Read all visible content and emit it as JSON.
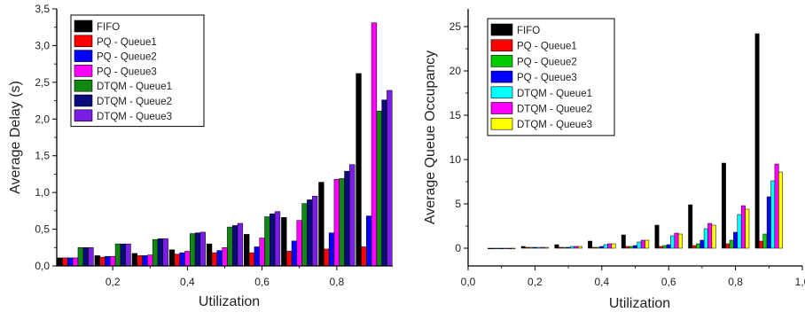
{
  "colors": {
    "black": "#000000",
    "red": "#ff0000",
    "green": "#00cc00",
    "blue": "#0000ff",
    "magenta": "#ff00ff",
    "cyan": "#00ffff",
    "yellow": "#ffff00",
    "dark_green": "#118811",
    "navy": "#0a0a7a",
    "violet": "#7a1ee6"
  },
  "chart_data": [
    {
      "type": "bar",
      "xlabel": "Utilization",
      "ylabel": "Average Delay (s)",
      "xlim": [
        0.05,
        0.95
      ],
      "ylim": [
        0,
        3.5
      ],
      "xticks": [
        0.2,
        0.4,
        0.6,
        0.8
      ],
      "xtick_labels": [
        "0,2",
        "0,4",
        "0,6",
        "0,8"
      ],
      "yticks": [
        0,
        0.5,
        1.0,
        1.5,
        2.0,
        2.5,
        3.0,
        3.5
      ],
      "ytick_labels": [
        "0,0",
        "0,5",
        "1,0",
        "1,5",
        "2,0",
        "2,5",
        "3,0",
        "3,5"
      ],
      "legend_position": "top-left",
      "x": [
        0.1,
        0.2,
        0.3,
        0.4,
        0.5,
        0.6,
        0.7,
        0.8,
        0.9
      ],
      "series": [
        {
          "name": "FIFO",
          "color": "#000000",
          "values": [
            0.11,
            0.14,
            0.17,
            0.22,
            0.3,
            0.43,
            0.66,
            1.14,
            2.62
          ]
        },
        {
          "name": "PQ - Queue1",
          "color": "#ff0000",
          "values": [
            0.11,
            0.12,
            0.14,
            0.16,
            0.18,
            0.18,
            0.2,
            0.23,
            0.26
          ]
        },
        {
          "name": "PQ - Queue2",
          "color": "#0000ff",
          "values": [
            0.11,
            0.13,
            0.14,
            0.18,
            0.21,
            0.26,
            0.34,
            0.45,
            0.68
          ]
        },
        {
          "name": "PQ - Queue3",
          "color": "#ff00ff",
          "values": [
            0.11,
            0.13,
            0.15,
            0.2,
            0.25,
            0.38,
            0.62,
            1.18,
            3.31
          ]
        },
        {
          "name": "DTQM - Queue1",
          "color": "#118811",
          "values": [
            0.25,
            0.3,
            0.36,
            0.44,
            0.53,
            0.67,
            0.85,
            1.19,
            2.11
          ]
        },
        {
          "name": "DTQM - Queue2",
          "color": "#0a0a7a",
          "values": [
            0.25,
            0.3,
            0.37,
            0.45,
            0.55,
            0.71,
            0.9,
            1.29,
            2.26
          ]
        },
        {
          "name": "DTQM - Queue3",
          "color": "#7a1ee6",
          "values": [
            0.25,
            0.3,
            0.37,
            0.46,
            0.58,
            0.74,
            0.95,
            1.38,
            2.39
          ]
        }
      ]
    },
    {
      "type": "bar",
      "xlabel": "Utilization",
      "ylabel": "Average Queue Occupancy",
      "xlim": [
        0.0,
        1.0
      ],
      "ylim": [
        -2,
        27
      ],
      "xticks": [
        0.0,
        0.2,
        0.4,
        0.6,
        0.8,
        1.0
      ],
      "xtick_labels": [
        "0,0",
        "0,2",
        "0,4",
        "0,6",
        "0,8",
        "1,0"
      ],
      "yticks": [
        0,
        5,
        10,
        15,
        20,
        25
      ],
      "ytick_labels": [
        "0",
        "5",
        "10",
        "15",
        "20",
        "25"
      ],
      "legend_position": "top-left",
      "x": [
        0.1,
        0.2,
        0.3,
        0.4,
        0.5,
        0.6,
        0.7,
        0.8,
        0.9
      ],
      "series": [
        {
          "name": "FIFO",
          "color": "#000000",
          "values": [
            0.0,
            0.2,
            0.4,
            0.8,
            1.5,
            2.6,
            4.9,
            9.6,
            24.2
          ]
        },
        {
          "name": "PQ - Queue1",
          "color": "#ff0000",
          "values": [
            0.0,
            0.1,
            0.1,
            0.1,
            0.2,
            0.2,
            0.3,
            0.5,
            0.8
          ]
        },
        {
          "name": "PQ - Queue2",
          "color": "#00cc00",
          "values": [
            0.0,
            0.1,
            0.1,
            0.1,
            0.2,
            0.3,
            0.5,
            0.9,
            1.6
          ]
        },
        {
          "name": "PQ - Queue3",
          "color": "#0000ff",
          "values": [
            0.0,
            0.1,
            0.1,
            0.2,
            0.3,
            0.4,
            0.9,
            1.8,
            5.8
          ]
        },
        {
          "name": "DTQM - Queue1",
          "color": "#00ffff",
          "values": [
            0.0,
            0.1,
            0.2,
            0.4,
            0.7,
            1.4,
            2.2,
            3.8,
            7.6
          ]
        },
        {
          "name": "DTQM - Queue2",
          "color": "#ff00ff",
          "values": [
            0.0,
            0.1,
            0.2,
            0.5,
            0.9,
            1.7,
            2.8,
            4.8,
            9.5
          ]
        },
        {
          "name": "DTQM - Queue3",
          "color": "#ffff00",
          "values": [
            0.0,
            0.1,
            0.2,
            0.5,
            0.9,
            1.6,
            2.6,
            4.4,
            8.6
          ]
        }
      ]
    }
  ]
}
